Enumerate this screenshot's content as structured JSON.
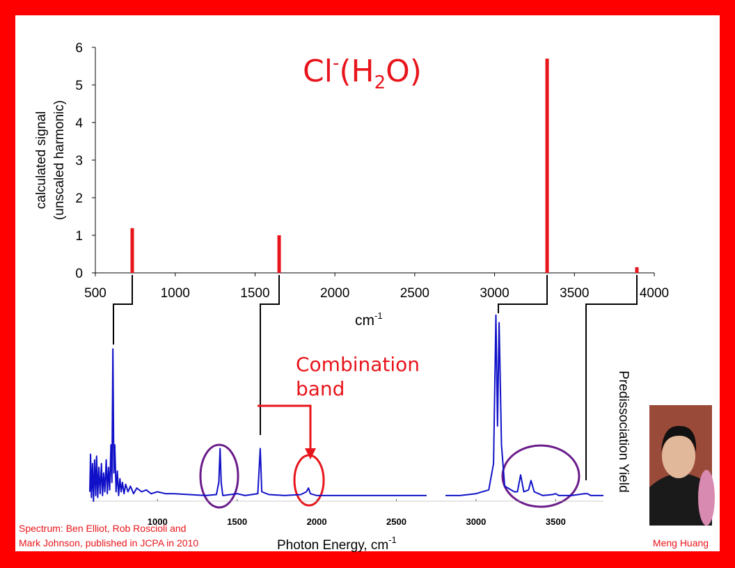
{
  "chart_data": [
    {
      "type": "bar",
      "title": [
        "Cl",
        "-",
        "(H",
        "2",
        "O)"
      ],
      "y_label": [
        "calculated signal",
        "(unscaled harmonic)"
      ],
      "x_label": [
        "cm",
        "-1"
      ],
      "x": [
        731,
        1651,
        3329,
        3891
      ],
      "values": [
        1.19,
        1.0,
        5.7,
        0.15
      ],
      "color": "#e8141b",
      "xlim": [
        500,
        4000
      ],
      "xticks": [
        500,
        1000,
        1500,
        2000,
        2500,
        3000,
        3500,
        4000
      ],
      "ylim": [
        0,
        6
      ],
      "yticks": [
        0,
        1,
        2,
        3,
        4,
        5,
        6
      ]
    },
    {
      "type": "line",
      "x_label": [
        "Photon Energy, cm",
        "-1"
      ],
      "y_label": "Predissociation Yield",
      "annotations": [
        [
          "Combination",
          "band"
        ],
        [
          "Spectrum: Ben Elliot, Rob Roscioli and",
          "Mark Johnson, published in JCPA in 2010"
        ],
        "Meng Huang"
      ],
      "color": "#1010c8",
      "x": [
        575,
        580,
        585,
        592,
        598,
        605,
        612,
        618,
        625,
        632,
        640,
        648,
        655,
        662,
        670,
        678,
        685,
        692,
        700,
        708,
        714,
        720,
        726,
        732,
        740,
        748,
        756,
        764,
        772,
        780,
        790,
        800,
        815,
        830,
        850,
        870,
        900,
        930,
        960,
        1000,
        1050,
        1100,
        1200,
        1300,
        1370,
        1385,
        1393,
        1400,
        1410,
        1500,
        1550,
        1630,
        1645,
        1655,
        1700,
        1800,
        1900,
        1935,
        1948,
        1960,
        2000,
        2200,
        2400,
        2690,
        2750,
        2808,
        2900,
        3000,
        3080,
        3110,
        3125,
        3135,
        3145,
        3160,
        3180,
        3240,
        3260,
        3280,
        3300,
        3330,
        3345,
        3365,
        3420,
        3480,
        3500,
        3520,
        3600,
        3680,
        3700,
        3720,
        3800
      ],
      "values": [
        0.05,
        0.25,
        0.02,
        0.2,
        0.0,
        0.22,
        0.03,
        0.24,
        0.02,
        0.18,
        0.04,
        0.2,
        0.03,
        0.15,
        0.05,
        0.22,
        0.04,
        0.18,
        0.06,
        0.3,
        0.1,
        0.81,
        0.15,
        0.3,
        0.05,
        0.16,
        0.03,
        0.12,
        0.05,
        0.1,
        0.04,
        0.09,
        0.05,
        0.08,
        0.04,
        0.07,
        0.05,
        0.06,
        0.04,
        0.05,
        0.04,
        0.04,
        0.035,
        0.03,
        0.035,
        0.1,
        0.28,
        0.1,
        0.03,
        0.04,
        0.03,
        0.04,
        0.28,
        0.05,
        0.035,
        0.03,
        0.035,
        0.05,
        0.07,
        0.04,
        0.03,
        0.03,
        0.03,
        0.03,
        null,
        0.03,
        0.03,
        0.04,
        0.06,
        0.2,
        0.99,
        0.4,
        0.95,
        0.3,
        0.08,
        0.05,
        0.05,
        0.14,
        0.05,
        0.06,
        0.11,
        0.05,
        0.03,
        0.035,
        0.04,
        0.03,
        0.03,
        0.04,
        0.04,
        0.03,
        0.03
      ],
      "xlim": [
        575,
        3800
      ],
      "xticks": [
        1000,
        1500,
        2000,
        2500,
        3000,
        3500
      ],
      "ylim": [
        0,
        1
      ]
    }
  ]
}
